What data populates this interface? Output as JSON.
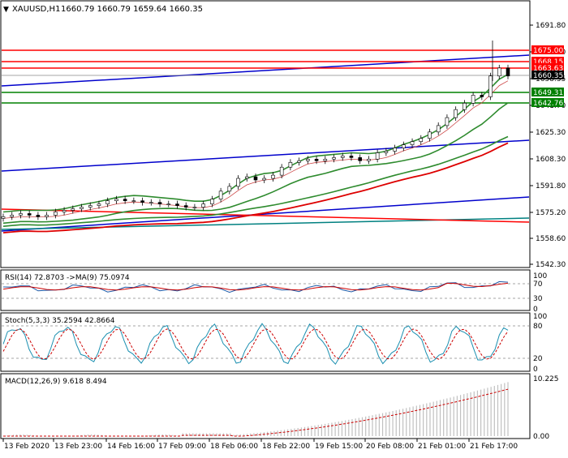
{
  "header": {
    "symbol": "XAUUSD,H1",
    "ohlc": "1660.79 1660.79 1659.64 1660.35"
  },
  "price_axis": {
    "ticks": [
      "1691.80",
      "1675.00",
      "1658.35",
      "1641.70",
      "1625.30",
      "1608.30",
      "1591.80",
      "1575.20",
      "1558.60",
      "1542.30"
    ]
  },
  "level_labels": [
    {
      "text": "1675.00",
      "color": "#ff0000"
    },
    {
      "text": "1668.15",
      "color": "#ff0000"
    },
    {
      "text": "1663.63",
      "color": "#ff0000"
    },
    {
      "text": "1660.35",
      "color": "#000000"
    },
    {
      "text": "1649.31",
      "color": "#008000"
    },
    {
      "text": "1642.76",
      "color": "#008000"
    }
  ],
  "time_axis": {
    "ticks": [
      "13 Feb 2020",
      "13 Feb 23:00",
      "14 Feb 16:00",
      "17 Feb 09:00",
      "18 Feb 06:00",
      "18 Feb 22:00",
      "19 Feb 15:00",
      "20 Feb 08:00",
      "21 Feb 01:00",
      "21 Feb 17:00"
    ]
  },
  "rsi_panel": {
    "title": "RSI(14) 72.8703 ->MA(9) 75.0974",
    "ticks": [
      "100",
      "70",
      "30",
      "0"
    ]
  },
  "stoch_panel": {
    "title": "Stoch(5,3,3) 35.2594 42.8664",
    "ticks": [
      "100",
      "80",
      "20",
      "0"
    ]
  },
  "macd_panel": {
    "title": "MACD(12,26,9) 9.618 8.494",
    "ticks": [
      "10.225",
      "0.00"
    ]
  },
  "colors": {
    "level_red": "#ff0000",
    "level_green": "#008000",
    "channel_blue": "#0000cc",
    "ma_green": "#2e8b2e",
    "teal": "#008080",
    "rsi_line": "#1e5aa8",
    "rsi_ma": "#cc0000",
    "macd_hist": "#c0c0c0",
    "macd_signal": "#cc0000"
  },
  "chart_data": {
    "type": "candlestick",
    "ylim": [
      1538,
      1700
    ],
    "approx_close": [
      1572,
      1573,
      1574,
      1573,
      1572,
      1573,
      1575,
      1576,
      1577,
      1578,
      1579,
      1580,
      1582,
      1583,
      1582,
      1582,
      1581,
      1581,
      1580,
      1580,
      1579,
      1578,
      1578,
      1580,
      1583,
      1588,
      1591,
      1596,
      1597,
      1595,
      1596,
      1598,
      1603,
      1606,
      1607,
      1608,
      1607,
      1608,
      1609,
      1610,
      1609,
      1607,
      1608,
      1612,
      1613,
      1615,
      1617,
      1619,
      1621,
      1625,
      1629,
      1634,
      1639,
      1643,
      1648,
      1647,
      1660,
      1665,
      1660
    ]
  }
}
